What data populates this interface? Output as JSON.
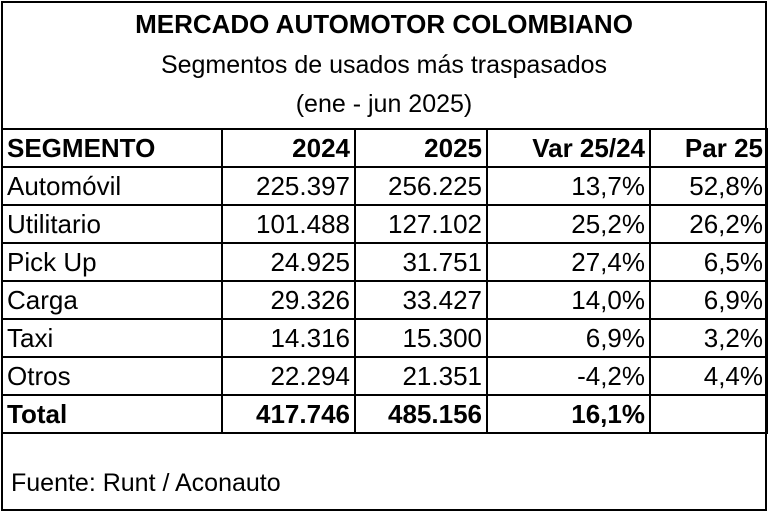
{
  "header": {
    "title": "MERCADO AUTOMOTOR COLOMBIANO",
    "subtitle": "Segmentos de usados más traspasados",
    "period": "(ene - jun 2025)"
  },
  "table": {
    "columns": [
      "SEGMENTO",
      "2024",
      "2025",
      "Var 25/24",
      "Par 25"
    ],
    "rows": [
      [
        "Automóvil",
        "225.397",
        "256.225",
        "13,7%",
        "52,8%"
      ],
      [
        "Utilitario",
        "101.488",
        "127.102",
        "25,2%",
        "26,2%"
      ],
      [
        "Pick Up",
        "24.925",
        "31.751",
        "27,4%",
        "6,5%"
      ],
      [
        "Carga",
        "29.326",
        "33.427",
        "14,0%",
        "6,9%"
      ],
      [
        "Taxi",
        "14.316",
        "15.300",
        "6,9%",
        "3,2%"
      ],
      [
        "Otros",
        "22.294",
        "21.351",
        "-4,2%",
        "4,4%"
      ]
    ],
    "total": [
      "Total",
      "417.746",
      "485.156",
      "16,1%"
    ]
  },
  "footer": {
    "source": "Fuente: Runt / Aconauto"
  }
}
